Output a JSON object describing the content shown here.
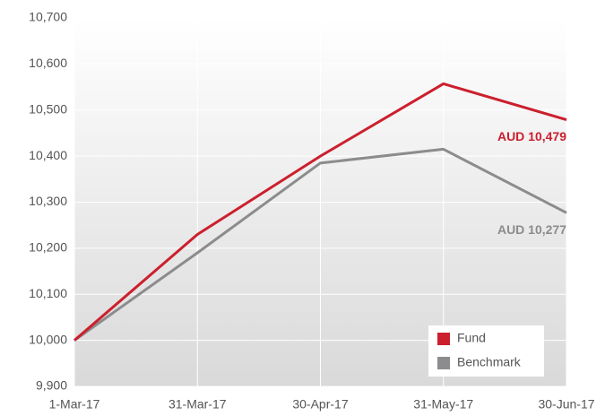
{
  "chart_data": {
    "type": "line",
    "categories": [
      "1-Mar-17",
      "31-Mar-17",
      "30-Apr-17",
      "31-May-17",
      "30-Jun-17"
    ],
    "series": [
      {
        "name": "Fund",
        "color": "#cc1f2d",
        "values": [
          10000,
          10230,
          10400,
          10557,
          10479
        ],
        "value_labels": [
          null,
          null,
          null,
          null,
          "AUD 10,479"
        ]
      },
      {
        "name": "Benchmark",
        "color": "#8c8c8e",
        "values": [
          10000,
          10190,
          10385,
          10415,
          10277
        ],
        "value_labels": [
          null,
          null,
          null,
          null,
          "AUD 10,277"
        ]
      }
    ],
    "ylim": [
      9900,
      10700
    ],
    "yticks": [
      {
        "value": 9900,
        "label": "9,900"
      },
      {
        "value": 10000,
        "label": "10,000"
      },
      {
        "value": 10100,
        "label": "10,100"
      },
      {
        "value": 10200,
        "label": "10,200"
      },
      {
        "value": 10300,
        "label": "10,300"
      },
      {
        "value": 10400,
        "label": "10,400"
      },
      {
        "value": 10500,
        "label": "10,500"
      },
      {
        "value": 10600,
        "label": "10,600"
      },
      {
        "value": 10700,
        "label": "10,700"
      }
    ],
    "grid": true,
    "legend": "lower right"
  }
}
